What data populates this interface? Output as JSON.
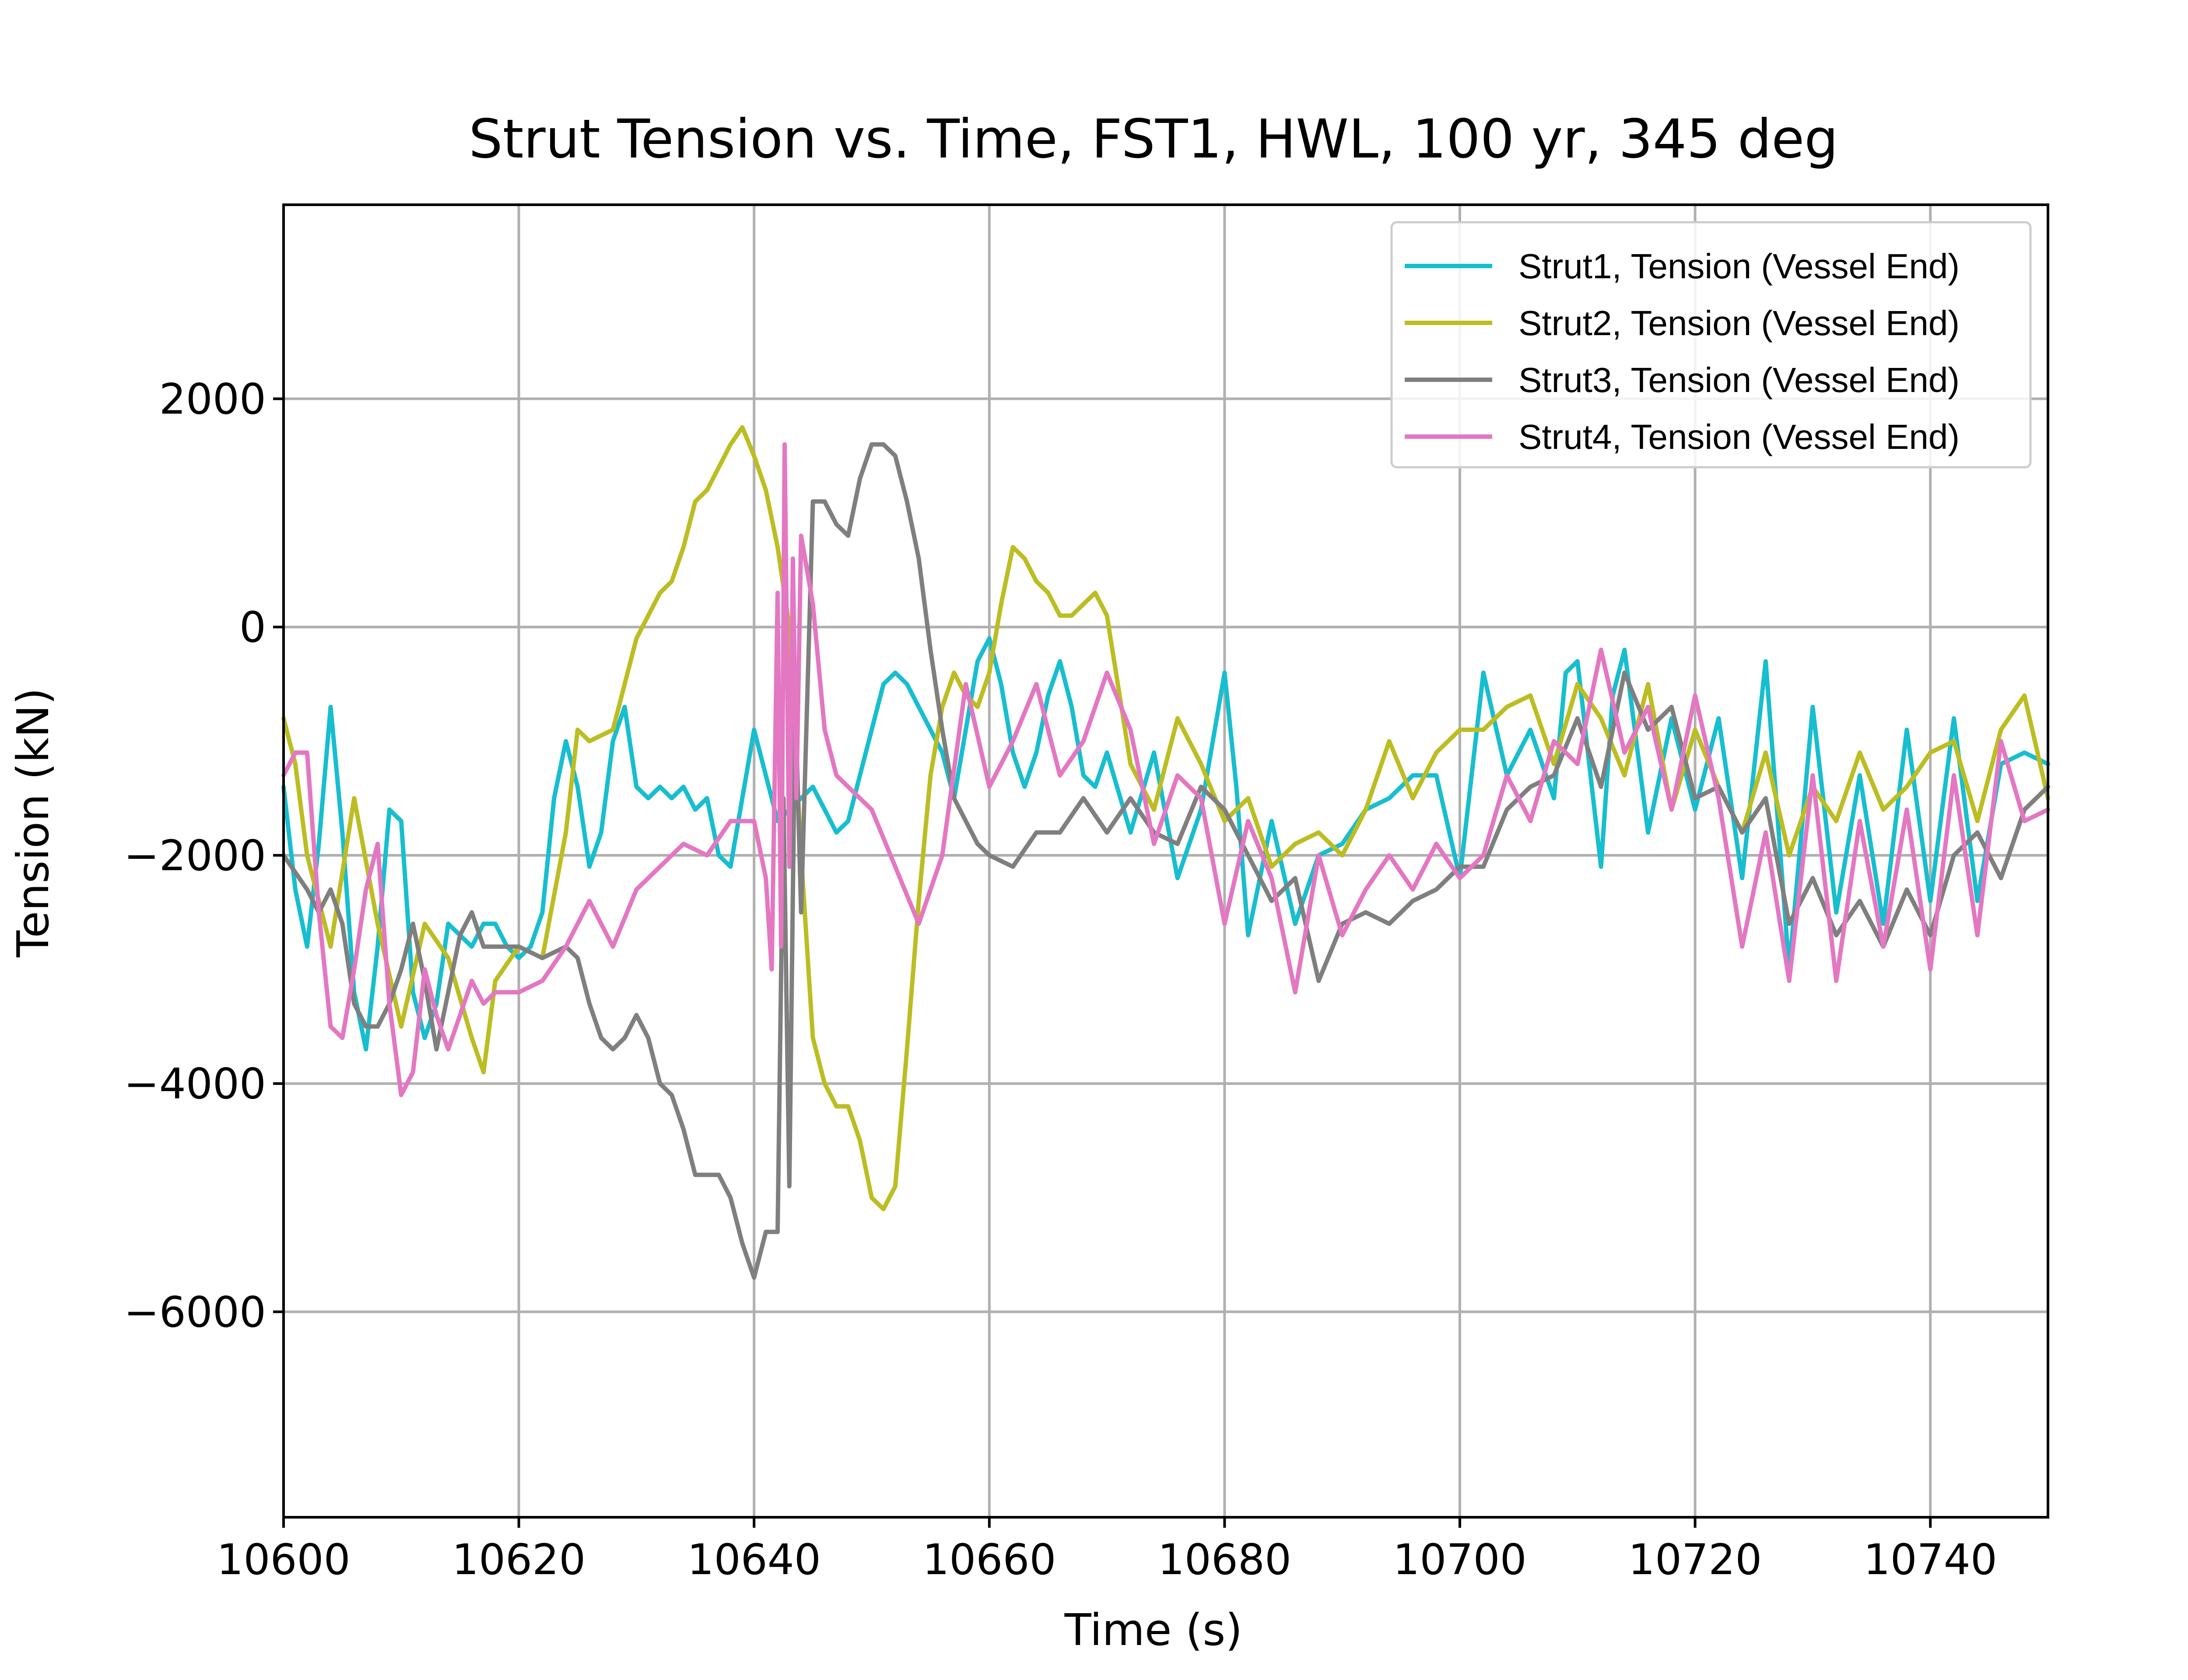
{
  "chart_data": {
    "type": "line",
    "title": "Strut Tension vs. Time, FST1, HWL, 100 yr, 345 deg",
    "xlabel": "Time (s)",
    "ylabel": "Tension (kN)",
    "xlim": [
      10600,
      10750
    ],
    "ylim": [
      -7800,
      3700
    ],
    "xticks": [
      10600,
      10620,
      10640,
      10660,
      10680,
      10700,
      10720,
      10740
    ],
    "yticks": [
      2000,
      0,
      -2000,
      -4000,
      -6000
    ],
    "xtick_labels": [
      "10600",
      "10620",
      "10640",
      "10660",
      "10680",
      "10700",
      "10720",
      "10740"
    ],
    "ytick_labels": [
      "2000",
      "0",
      "−2000",
      "−4000",
      "−6000"
    ],
    "grid": true,
    "legend_position": "top-right",
    "series": [
      {
        "name": "Strut1, Tension (Vessel End)",
        "color": "#17becf",
        "x": [
          10600,
          10601,
          10602,
          10603,
          10604,
          10605,
          10606,
          10607,
          10608,
          10609,
          10610,
          10611,
          10612,
          10613,
          10614,
          10615,
          10616,
          10617,
          10618,
          10619,
          10620,
          10621,
          10622,
          10623,
          10624,
          10625,
          10626,
          10627,
          10628,
          10629,
          10630,
          10631,
          10632,
          10633,
          10634,
          10635,
          10636,
          10637,
          10638,
          10639,
          10640,
          10641,
          10642,
          10643,
          10644,
          10645,
          10646,
          10647,
          10648,
          10649,
          10650,
          10651,
          10652,
          10653,
          10654,
          10655,
          10656,
          10657,
          10658,
          10659,
          10660,
          10661,
          10662,
          10663,
          10664,
          10665,
          10666,
          10667,
          10668,
          10669,
          10670,
          10672,
          10674,
          10676,
          10678,
          10680,
          10681,
          10682,
          10684,
          10686,
          10688,
          10690,
          10692,
          10694,
          10696,
          10698,
          10700,
          10702,
          10704,
          10706,
          10708,
          10709,
          10710,
          10712,
          10713,
          10714,
          10716,
          10718,
          10720,
          10722,
          10724,
          10726,
          10728,
          10730,
          10732,
          10734,
          10736,
          10738,
          10740,
          10742,
          10744,
          10746,
          10748,
          10750
        ],
        "y": [
          -1400,
          -2300,
          -2800,
          -1900,
          -700,
          -1800,
          -3200,
          -3700,
          -2800,
          -1600,
          -1700,
          -3200,
          -3600,
          -3300,
          -2600,
          -2700,
          -2800,
          -2600,
          -2600,
          -2800,
          -2900,
          -2800,
          -2500,
          -1500,
          -1000,
          -1400,
          -2100,
          -1800,
          -1000,
          -700,
          -1400,
          -1500,
          -1400,
          -1500,
          -1400,
          -1600,
          -1500,
          -2000,
          -2100,
          -1500,
          -900,
          -1300,
          -1700,
          -1600,
          -1500,
          -1400,
          -1600,
          -1800,
          -1700,
          -1300,
          -900,
          -500,
          -400,
          -500,
          -700,
          -900,
          -1100,
          -1500,
          -900,
          -300,
          -100,
          -500,
          -1100,
          -1400,
          -1100,
          -600,
          -300,
          -700,
          -1300,
          -1400,
          -1100,
          -1800,
          -1100,
          -2200,
          -1600,
          -400,
          -1400,
          -2700,
          -1700,
          -2600,
          -2000,
          -1900,
          -1600,
          -1500,
          -1300,
          -1300,
          -2200,
          -400,
          -1300,
          -900,
          -1500,
          -400,
          -300,
          -2100,
          -600,
          -200,
          -1800,
          -800,
          -1600,
          -800,
          -2200,
          -300,
          -3000,
          -700,
          -2500,
          -1300,
          -2600,
          -900,
          -2400,
          -800,
          -2400,
          -1200,
          -1100,
          -1200
        ]
      },
      {
        "name": "Strut2, Tension (Vessel End)",
        "color": "#bcbd22",
        "x": [
          10600,
          10601,
          10602,
          10604,
          10606,
          10608,
          10610,
          10612,
          10614,
          10616,
          10617,
          10618,
          10620,
          10622,
          10624,
          10625,
          10626,
          10628,
          10630,
          10632,
          10633,
          10634,
          10635,
          10636,
          10637,
          10638,
          10639,
          10640,
          10641,
          10642,
          10643,
          10644,
          10645,
          10646,
          10647,
          10648,
          10649,
          10650,
          10651,
          10652,
          10653,
          10654,
          10655,
          10656,
          10657,
          10658,
          10659,
          10660,
          10661,
          10662,
          10663,
          10664,
          10665,
          10666,
          10667,
          10668,
          10669,
          10670,
          10672,
          10674,
          10676,
          10678,
          10680,
          10682,
          10684,
          10686,
          10688,
          10690,
          10692,
          10694,
          10696,
          10698,
          10700,
          10702,
          10704,
          10706,
          10708,
          10710,
          10712,
          10714,
          10716,
          10718,
          10720,
          10722,
          10724,
          10726,
          10728,
          10730,
          10732,
          10734,
          10736,
          10738,
          10740,
          10742,
          10744,
          10746,
          10748,
          10750
        ],
        "y": [
          -800,
          -1200,
          -2000,
          -2800,
          -1500,
          -2600,
          -3500,
          -2600,
          -2900,
          -3600,
          -3900,
          -3100,
          -2800,
          -2900,
          -1800,
          -900,
          -1000,
          -900,
          -100,
          300,
          400,
          700,
          1100,
          1200,
          1400,
          1600,
          1750,
          1500,
          1200,
          700,
          0,
          -2000,
          -3600,
          -4000,
          -4200,
          -4200,
          -4500,
          -5000,
          -5100,
          -4900,
          -3700,
          -2400,
          -1300,
          -700,
          -400,
          -600,
          -700,
          -400,
          200,
          700,
          600,
          400,
          300,
          100,
          100,
          200,
          300,
          100,
          -1200,
          -1600,
          -800,
          -1200,
          -1700,
          -1500,
          -2100,
          -1900,
          -1800,
          -2000,
          -1600,
          -1000,
          -1500,
          -1100,
          -900,
          -900,
          -700,
          -600,
          -1200,
          -500,
          -800,
          -1300,
          -500,
          -1600,
          -900,
          -1400,
          -1800,
          -1100,
          -2000,
          -1400,
          -1700,
          -1100,
          -1600,
          -1400,
          -1100,
          -1000,
          -1700,
          -900,
          -600,
          -1500
        ]
      },
      {
        "name": "Strut3, Tension (Vessel End)",
        "color": "#7f7f7f",
        "x": [
          10600,
          10602,
          10603,
          10604,
          10605,
          10606,
          10607,
          10608,
          10609,
          10610,
          10611,
          10612,
          10613,
          10614,
          10615,
          10616,
          10617,
          10618,
          10620,
          10622,
          10624,
          10625,
          10626,
          10627,
          10628,
          10629,
          10630,
          10631,
          10632,
          10633,
          10634,
          10635,
          10636,
          10637,
          10638,
          10639,
          10640,
          10641,
          10642,
          10642.5,
          10643,
          10643.5,
          10644,
          10645,
          10646,
          10647,
          10648,
          10649,
          10650,
          10651,
          10652,
          10653,
          10654,
          10655,
          10656,
          10657,
          10658,
          10659,
          10660,
          10662,
          10664,
          10666,
          10668,
          10670,
          10672,
          10674,
          10676,
          10678,
          10680,
          10682,
          10684,
          10686,
          10688,
          10690,
          10692,
          10694,
          10696,
          10698,
          10700,
          10702,
          10704,
          10706,
          10708,
          10710,
          10712,
          10714,
          10716,
          10718,
          10720,
          10722,
          10724,
          10726,
          10728,
          10730,
          10732,
          10734,
          10736,
          10738,
          10740,
          10742,
          10744,
          10746,
          10748,
          10750
        ],
        "y": [
          -2000,
          -2300,
          -2500,
          -2300,
          -2600,
          -3300,
          -3500,
          -3500,
          -3300,
          -3000,
          -2600,
          -3100,
          -3700,
          -3200,
          -2700,
          -2500,
          -2800,
          -2800,
          -2800,
          -2900,
          -2800,
          -2900,
          -3300,
          -3600,
          -3700,
          -3600,
          -3400,
          -3600,
          -4000,
          -4100,
          -4400,
          -4800,
          -4800,
          -4800,
          -5000,
          -5400,
          -5700,
          -5300,
          -5300,
          -1500,
          -4900,
          -600,
          -2500,
          1100,
          1100,
          900,
          800,
          1300,
          1600,
          1600,
          1500,
          1100,
          600,
          -200,
          -900,
          -1500,
          -1700,
          -1900,
          -2000,
          -2100,
          -1800,
          -1800,
          -1500,
          -1800,
          -1500,
          -1800,
          -1900,
          -1400,
          -1600,
          -2000,
          -2400,
          -2200,
          -3100,
          -2600,
          -2500,
          -2600,
          -2400,
          -2300,
          -2100,
          -2100,
          -1600,
          -1400,
          -1300,
          -800,
          -1400,
          -400,
          -900,
          -700,
          -1500,
          -1400,
          -1800,
          -1500,
          -2600,
          -2200,
          -2700,
          -2400,
          -2800,
          -2300,
          -2700,
          -2000,
          -1800,
          -2200,
          -1600,
          -1400
        ]
      },
      {
        "name": "Strut4, Tension (Vessel End)",
        "color": "#e377c2",
        "x": [
          10600,
          10601,
          10602,
          10603,
          10604,
          10605,
          10606,
          10607,
          10608,
          10609,
          10610,
          10611,
          10612,
          10613,
          10614,
          10615,
          10616,
          10617,
          10618,
          10620,
          10622,
          10624,
          10626,
          10628,
          10630,
          10632,
          10634,
          10636,
          10638,
          10640,
          10641,
          10641.5,
          10642,
          10642.3,
          10642.6,
          10643,
          10643.3,
          10643.6,
          10644,
          10644.5,
          10645,
          10646,
          10647,
          10648,
          10650,
          10652,
          10654,
          10656,
          10658,
          10660,
          10662,
          10664,
          10666,
          10668,
          10670,
          10672,
          10674,
          10676,
          10678,
          10680,
          10682,
          10684,
          10686,
          10688,
          10690,
          10692,
          10694,
          10696,
          10698,
          10700,
          10702,
          10704,
          10706,
          10708,
          10710,
          10712,
          10714,
          10716,
          10718,
          10720,
          10722,
          10724,
          10726,
          10728,
          10730,
          10732,
          10734,
          10736,
          10738,
          10740,
          10742,
          10744,
          10746,
          10748,
          10750
        ],
        "y": [
          -1300,
          -1100,
          -1100,
          -2500,
          -3500,
          -3600,
          -3000,
          -2300,
          -1900,
          -3300,
          -4100,
          -3900,
          -3000,
          -3400,
          -3700,
          -3400,
          -3100,
          -3300,
          -3200,
          -3200,
          -3100,
          -2800,
          -2400,
          -2800,
          -2300,
          -2100,
          -1900,
          -2000,
          -1700,
          -1700,
          -2200,
          -3000,
          300,
          -2800,
          1600,
          -2100,
          600,
          -1500,
          800,
          500,
          200,
          -900,
          -1300,
          -1400,
          -1600,
          -2100,
          -2600,
          -2000,
          -500,
          -1400,
          -1000,
          -500,
          -1300,
          -1000,
          -400,
          -900,
          -1900,
          -1300,
          -1500,
          -2600,
          -1700,
          -2200,
          -3200,
          -2000,
          -2700,
          -2300,
          -2000,
          -2300,
          -1900,
          -2200,
          -2000,
          -1300,
          -1700,
          -1000,
          -1200,
          -200,
          -1100,
          -700,
          -1600,
          -600,
          -1500,
          -2800,
          -1800,
          -3100,
          -1300,
          -3100,
          -1700,
          -2800,
          -1600,
          -3000,
          -1300,
          -2700,
          -1000,
          -1700,
          -1600
        ]
      }
    ]
  }
}
